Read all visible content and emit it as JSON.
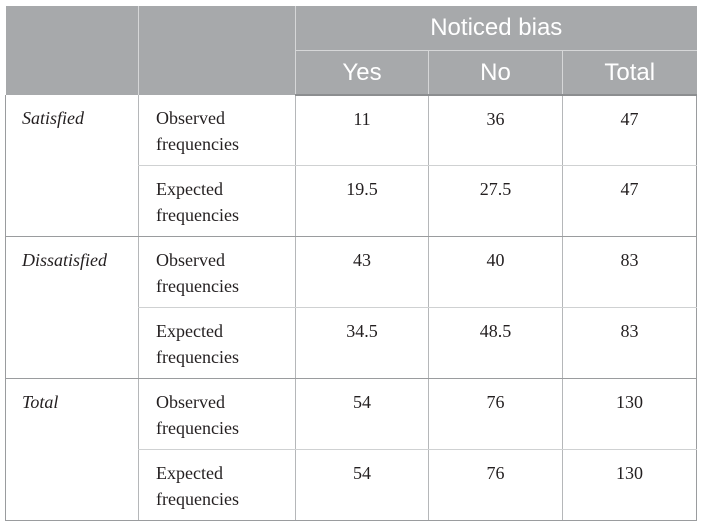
{
  "table": {
    "header": {
      "corner_1": "",
      "corner_2": "",
      "group_label": "Noticed bias",
      "columns": [
        "Yes",
        "No",
        "Total"
      ]
    },
    "groups": [
      {
        "label": "Satisfied",
        "rows": [
          {
            "label": "Observed frequencies",
            "values": [
              "11",
              "36",
              "47"
            ]
          },
          {
            "label": "Expected frequencies",
            "values": [
              "19.5",
              "27.5",
              "47"
            ]
          }
        ]
      },
      {
        "label": "Dissatisfied",
        "rows": [
          {
            "label": "Observed frequencies",
            "values": [
              "43",
              "40",
              "83"
            ]
          },
          {
            "label": "Expected frequencies",
            "values": [
              "34.5",
              "48.5",
              "83"
            ]
          }
        ]
      },
      {
        "label": "Total",
        "rows": [
          {
            "label": "Observed frequencies",
            "values": [
              "54",
              "76",
              "130"
            ]
          },
          {
            "label": "Expected frequencies",
            "values": [
              "54",
              "76",
              "130"
            ]
          }
        ]
      }
    ]
  },
  "colors": {
    "header_background": "#a7a9ab",
    "header_text": "#ffffff",
    "body_text": "#231f20",
    "rule": "#9a9c9e"
  }
}
